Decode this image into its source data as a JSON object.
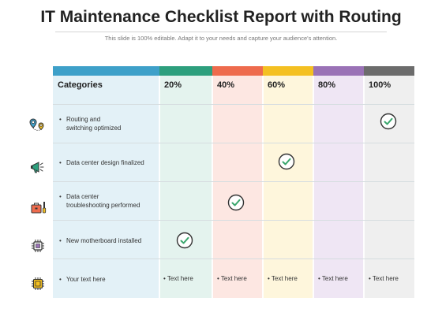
{
  "header": {
    "title": "IT Maintenance Checklist Report with Routing",
    "subtitle": "This slide is 100% editable. Adapt it to your needs and capture your audience's attention."
  },
  "table": {
    "columns": [
      "Categories",
      "20%",
      "40%",
      "60%",
      "80%",
      "100%"
    ],
    "column_colors": [
      "#3ea0c9",
      "#2d9f7d",
      "#ee6b4d",
      "#f4c022",
      "#9a72b6",
      "#6c6c6c"
    ],
    "rows": [
      {
        "label_line1": "Routing and",
        "label_line2": "switching optimized",
        "icon": "location-pins-icon",
        "checked_column": "100%"
      },
      {
        "label_line1": "Data center design finalized",
        "label_line2": "",
        "icon": "megaphone-icon",
        "checked_column": "60%"
      },
      {
        "label_line1": "Data center",
        "label_line2": "troubleshooting performed",
        "icon": "toolbox-icon",
        "checked_column": "40%"
      },
      {
        "label_line1": "New motherboard installed",
        "label_line2": "",
        "icon": "chip-icon",
        "checked_column": "20%"
      },
      {
        "label_line1": "Your text here",
        "label_line2": "",
        "icon": "circuit-icon",
        "checked_column": ""
      }
    ],
    "placeholder_cells": [
      "• Text here",
      "• Text here",
      "• Text here",
      "• Text here",
      "• Text here"
    ],
    "bullet": "•"
  }
}
